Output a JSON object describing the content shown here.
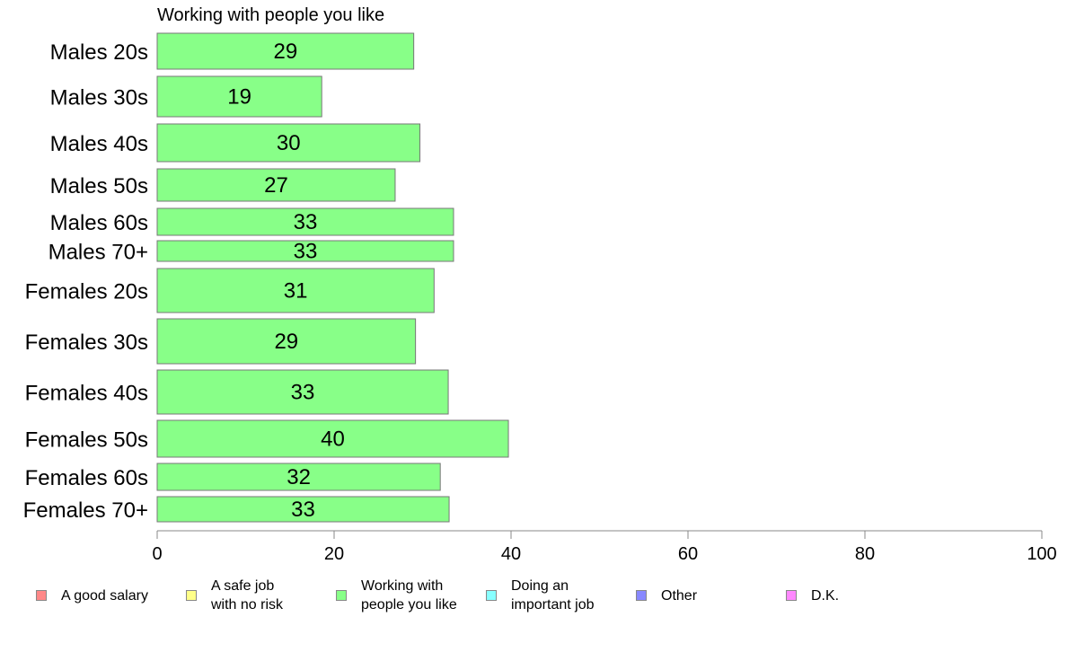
{
  "chart_data": {
    "type": "bar",
    "orientation": "horizontal",
    "title": "Working with people you like",
    "xlabel": "",
    "ylabel": "",
    "xlim": [
      0,
      100
    ],
    "xticks": [
      "0",
      "20",
      "40",
      "60",
      "80",
      "100"
    ],
    "bar_color": "#88ff88",
    "categories": [
      "Males 20s",
      "Males 30s",
      "Males 40s",
      "Males 50s",
      "Males 60s",
      "Males 70+",
      "Females 20s",
      "Females 30s",
      "Females 40s",
      "Females 50s",
      "Females 60s",
      "Females 70+"
    ],
    "values": [
      29,
      18.6,
      29.7,
      26.9,
      33.5,
      33.5,
      31.3,
      29.2,
      32.9,
      39.7,
      32.0,
      33.0
    ],
    "value_labels": [
      "29",
      "19",
      "30",
      "27",
      "33",
      "33",
      "31",
      "29",
      "33",
      "40",
      "32",
      "33"
    ],
    "legend": [
      {
        "label": "A good salary",
        "color": "#ff8888"
      },
      {
        "label": "A safe job\nwith no risk",
        "color": "#ffff88"
      },
      {
        "label": "Working with\npeople you like",
        "color": "#88ff88"
      },
      {
        "label": "Doing an\nimportant job",
        "color": "#88ffff"
      },
      {
        "label": "Other",
        "color": "#8888ff"
      },
      {
        "label": "D.K.",
        "color": "#ff88ff"
      }
    ]
  }
}
